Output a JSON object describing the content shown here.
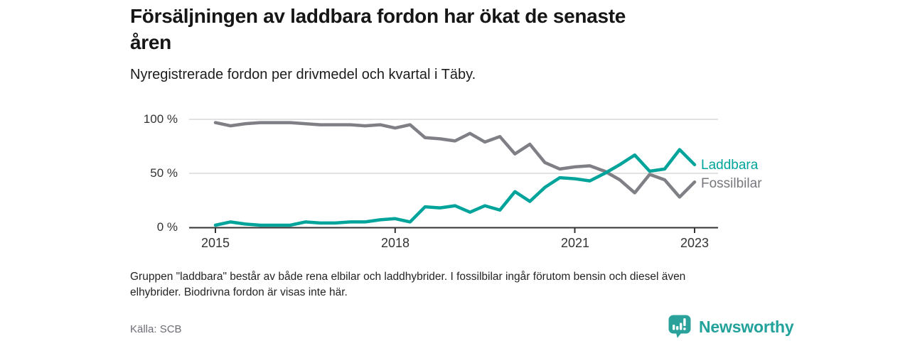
{
  "header": {
    "title_line1": "Försäljningen av laddbara fordon har ökat de senaste",
    "title_line2": "åren",
    "subtitle": "Nyregistrerade fordon per drivmedel och kvartal i Täby."
  },
  "chart_data": {
    "type": "line",
    "title": "Försäljningen av laddbara fordon har ökat de senaste åren",
    "subtitle": "Nyregistrerade fordon per drivmedel och kvartal i Täby.",
    "categories": [
      "2015 Q1",
      "2015 Q2",
      "2015 Q3",
      "2015 Q4",
      "2016 Q1",
      "2016 Q2",
      "2016 Q3",
      "2016 Q4",
      "2017 Q1",
      "2017 Q2",
      "2017 Q3",
      "2017 Q4",
      "2018 Q1",
      "2018 Q2",
      "2018 Q3",
      "2018 Q4",
      "2019 Q1",
      "2019 Q2",
      "2019 Q3",
      "2019 Q4",
      "2020 Q1",
      "2020 Q2",
      "2020 Q3",
      "2020 Q4",
      "2021 Q1",
      "2021 Q2",
      "2021 Q3",
      "2021 Q4",
      "2022 Q1",
      "2022 Q2",
      "2022 Q3",
      "2022 Q4",
      "2023 Q1"
    ],
    "series": [
      {
        "name": "Laddbara",
        "color": "#00a49b",
        "values": [
          2,
          5,
          3,
          2,
          2,
          2,
          5,
          4,
          4,
          5,
          5,
          7,
          8,
          5,
          19,
          18,
          20,
          14,
          20,
          16,
          33,
          24,
          37,
          46,
          45,
          43,
          50,
          58,
          67,
          52,
          54,
          72,
          58
        ]
      },
      {
        "name": "Fossilbilar",
        "color": "#7f7f86",
        "values": [
          97,
          94,
          96,
          97,
          97,
          97,
          96,
          95,
          95,
          95,
          94,
          95,
          92,
          95,
          83,
          82,
          80,
          87,
          79,
          84,
          68,
          77,
          60,
          54,
          56,
          57,
          52,
          44,
          32,
          49,
          44,
          28,
          42
        ]
      }
    ],
    "unit": "%",
    "ylim": [
      0,
      100
    ],
    "y_ticks": [
      "100 %",
      "50 %",
      "0 %"
    ],
    "x_ticks": [
      "2015",
      "2018",
      "2021",
      "2023"
    ],
    "grid": "horizontal",
    "legend_position": "line-end-labels-right"
  },
  "footnote": {
    "line1": "Gruppen \"laddbara\" består av både rena elbilar och laddhybrider. I fossilbilar ingår förutom bensin och diesel även",
    "line2": "elhybrider. Biodrivna fordon är visas inte här."
  },
  "source": "Källa: SCB",
  "logo": {
    "text": "Newsworthy"
  }
}
